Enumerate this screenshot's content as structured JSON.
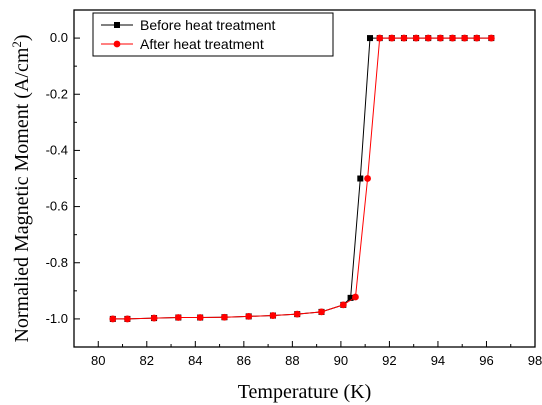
{
  "chart_data": {
    "type": "line",
    "xlabel": "Temperature (K)",
    "ylabel_main": "Normalied Magnetic Moment (A/cm",
    "ylabel_sup": "2",
    "ylabel_close": ")",
    "xlim": [
      79,
      98
    ],
    "ylim": [
      -1.1,
      0.1
    ],
    "xticks": [
      80,
      82,
      84,
      86,
      88,
      90,
      92,
      94,
      96,
      98
    ],
    "xtick_labels": [
      "80",
      "82",
      "84",
      "86",
      "88",
      "90",
      "92",
      "94",
      "96",
      "98"
    ],
    "yticks": [
      0.0,
      -0.2,
      -0.4,
      -0.6,
      -0.8,
      -1.0
    ],
    "ytick_labels": [
      "0.0",
      "-0.2",
      "-0.4",
      "-0.6",
      "-0.8",
      "-1.0"
    ],
    "legend_position": "top-left",
    "series": [
      {
        "name": "Before heat treatment",
        "color": "#000000",
        "marker": "square",
        "x": [
          80.6,
          81.2,
          82.3,
          83.3,
          84.2,
          85.2,
          86.2,
          87.2,
          88.2,
          89.2,
          90.1,
          90.4,
          90.8,
          91.2,
          91.6,
          92.1,
          92.6,
          93.1,
          93.6,
          94.1,
          94.6,
          95.1,
          95.6,
          96.2
        ],
        "y": [
          -1.0,
          -1.0,
          -0.997,
          -0.995,
          -0.995,
          -0.994,
          -0.991,
          -0.988,
          -0.983,
          -0.975,
          -0.95,
          -0.925,
          -0.5,
          0.0,
          0.0,
          0.0,
          0.0,
          0.0,
          0.0,
          0.0,
          0.0,
          0.0,
          0.0,
          0.0
        ]
      },
      {
        "name": "After heat treatment",
        "color": "#ff0000",
        "marker": "circle",
        "x": [
          80.6,
          81.2,
          82.3,
          83.3,
          84.2,
          85.2,
          86.2,
          87.2,
          88.2,
          89.2,
          90.1,
          90.6,
          91.1,
          91.6,
          92.1,
          92.6,
          93.1,
          93.6,
          94.1,
          94.6,
          95.1,
          95.6,
          96.2
        ],
        "y": [
          -1.0,
          -1.0,
          -0.997,
          -0.995,
          -0.995,
          -0.994,
          -0.991,
          -0.988,
          -0.983,
          -0.975,
          -0.95,
          -0.922,
          -0.5,
          0.0,
          0.0,
          0.0,
          0.0,
          0.0,
          0.0,
          0.0,
          0.0,
          0.0,
          0.0
        ]
      }
    ]
  }
}
